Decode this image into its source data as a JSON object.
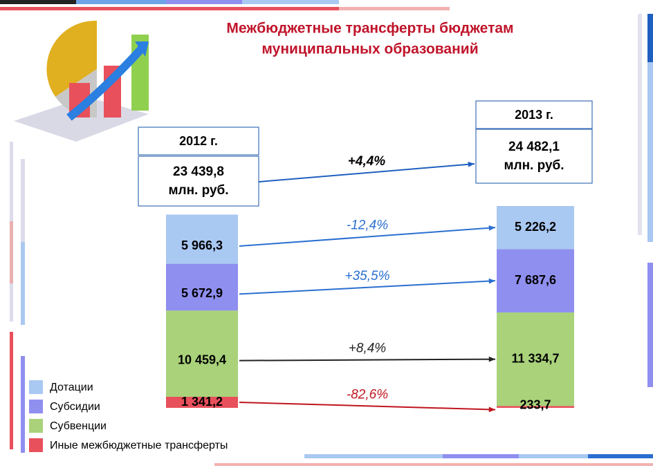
{
  "chart_data": {
    "type": "stacked_bar",
    "title_lines": [
      "Межбюджетные трансферты бюджетам",
      "муниципальных образований"
    ],
    "categories": [
      "2012 г.",
      "2013 г."
    ],
    "totals": {
      "values": [
        23439.8,
        24482.1
      ],
      "value_labels": [
        "23 439,8",
        "24 482,1"
      ],
      "unit": "млн. руб.",
      "change_label": "+4,4%",
      "change_color": "#1f5fbf"
    },
    "series": [
      {
        "name": "Дотации",
        "color": "#a9c8f2",
        "values": [
          5966.3,
          5226.2
        ],
        "value_labels": [
          "5 966,3",
          "5 226,2"
        ],
        "change_label": "-12,4%",
        "change_color": "#2a6fd0"
      },
      {
        "name": "Субсидии",
        "color": "#8f8ff0",
        "values": [
          5672.9,
          7687.6
        ],
        "value_labels": [
          "5 672,9",
          "7 687,6"
        ],
        "change_label": "+35,5%",
        "change_color": "#2a6fd0"
      },
      {
        "name": "Субвенции",
        "color": "#a9d27a",
        "values": [
          10459.4,
          11334.7
        ],
        "value_labels": [
          "10 459,4",
          "11 334,7"
        ],
        "change_label": "+8,4%",
        "change_color": "#222222"
      },
      {
        "name": "Иные межбюджетные трансферты",
        "color": "#e8505b",
        "values": [
          1341.2,
          233.7
        ],
        "value_labels": [
          "1 341,2",
          "233,7"
        ],
        "change_label": "-82,6%",
        "change_color": "#c0141e"
      }
    ]
  }
}
